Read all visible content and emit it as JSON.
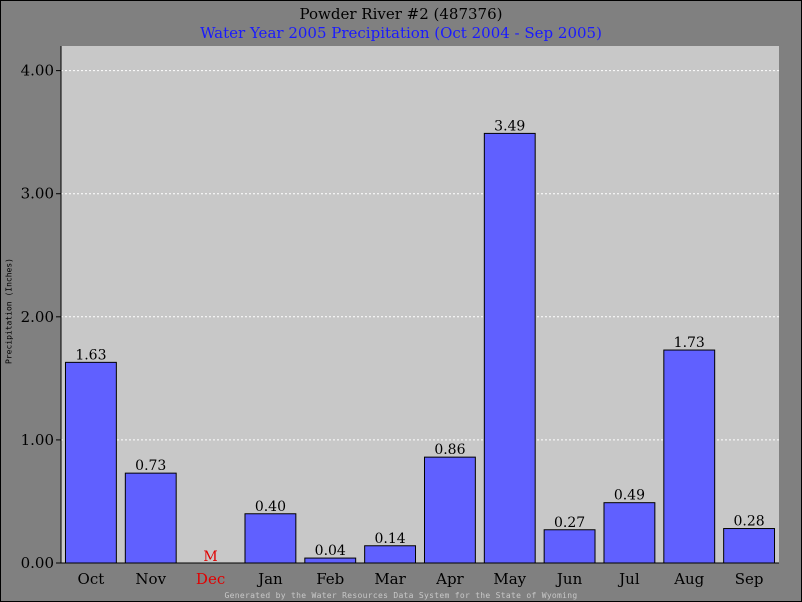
{
  "chart_data": {
    "type": "bar",
    "title": "Powder River #2 (487376)",
    "subtitle": "Water Year 2005 Precipitation (Oct 2004 - Sep 2005)",
    "xlabel": "",
    "ylabel": "Precipitation (Inches)",
    "ylim": [
      0,
      4.2
    ],
    "yticks": [
      "0.00",
      "1.00",
      "2.00",
      "3.00",
      "4.00"
    ],
    "categories": [
      "Oct",
      "Nov",
      "Dec",
      "Jan",
      "Feb",
      "Mar",
      "Apr",
      "May",
      "Jun",
      "Jul",
      "Aug",
      "Sep"
    ],
    "values": [
      1.63,
      0.73,
      null,
      0.4,
      0.04,
      0.14,
      0.86,
      3.49,
      0.27,
      0.49,
      1.73,
      0.28
    ],
    "value_labels": [
      "1.63",
      "0.73",
      "M",
      "0.40",
      "0.04",
      "0.14",
      "0.86",
      "3.49",
      "0.27",
      "0.49",
      "1.73",
      "0.28"
    ],
    "missing_categories": [
      "Dec"
    ],
    "grid": true,
    "colors": {
      "bar": "#6060ff",
      "plot_bg": "#c8c8c8",
      "page_bg": "#808080",
      "missing": "#e00000",
      "subtitle": "#1a1aff",
      "grid": "#ffffff"
    }
  },
  "footer": "Generated by the Water Resources Data System for the State of Wyoming"
}
